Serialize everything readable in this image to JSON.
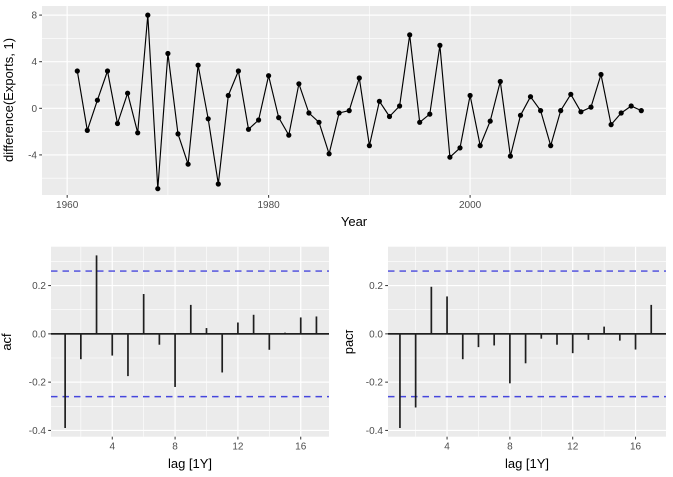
{
  "figure": {
    "background": "#FFFFFF",
    "panel_background": "#EBEBEB",
    "grid_color": "#FFFFFF",
    "axis_text_color": "#4D4D4D",
    "axis_title_color": "#000000",
    "tick_mark_color": "#333333",
    "series_color": "#000000",
    "bar_color": "#1F1F1F",
    "significance_line_color": "#4646DD"
  },
  "chart_data": [
    {
      "id": "difference-exports-timeseries",
      "type": "line",
      "title": "",
      "xlabel": "Year",
      "ylabel": "difference(Exports, 1)",
      "x": [
        1961,
        1962,
        1963,
        1964,
        1965,
        1966,
        1967,
        1968,
        1969,
        1970,
        1971,
        1972,
        1973,
        1974,
        1975,
        1976,
        1977,
        1978,
        1979,
        1980,
        1981,
        1982,
        1983,
        1984,
        1985,
        1986,
        1987,
        1988,
        1989,
        1990,
        1991,
        1992,
        1993,
        1994,
        1995,
        1996,
        1997,
        1998,
        1999,
        2000,
        2001,
        2002,
        2003,
        2004,
        2005,
        2006,
        2007,
        2008,
        2009,
        2010,
        2011,
        2012,
        2013,
        2014,
        2015,
        2016,
        2017
      ],
      "y": [
        3.2,
        -1.9,
        0.7,
        3.2,
        -1.3,
        1.3,
        -2.1,
        8.0,
        -6.9,
        4.7,
        -2.2,
        -4.8,
        3.7,
        -0.9,
        -6.5,
        1.1,
        3.2,
        -1.8,
        -1.0,
        2.8,
        -0.8,
        -2.3,
        2.1,
        -0.4,
        -1.2,
        -3.9,
        -0.4,
        -0.2,
        2.6,
        -3.2,
        0.6,
        -0.7,
        0.2,
        6.3,
        -1.2,
        -0.5,
        5.4,
        -4.2,
        -3.4,
        1.1,
        -3.2,
        -1.1,
        2.3,
        -4.1,
        -0.6,
        1.0,
        -0.2,
        -3.2,
        -0.2,
        1.2,
        -0.3,
        0.1,
        2.9,
        -1.4,
        -0.4,
        0.2,
        -0.2
      ],
      "x_ticks": [
        1960,
        1980,
        2000
      ],
      "x_tick_labels": [
        "1960",
        "1980",
        "2000"
      ],
      "x_minor_ticks": [
        1970,
        1990,
        2010
      ],
      "y_ticks": [
        -4,
        0,
        4,
        8
      ],
      "y_tick_labels": [
        "-4",
        "0",
        "4",
        "8"
      ],
      "y_minor_ticks": [
        -6,
        -2,
        2,
        6
      ],
      "xlim": [
        1957.5,
        2019.45
      ],
      "ylim": [
        -7.44,
        8.78
      ],
      "grid": true,
      "legend": "none",
      "marker": "point"
    },
    {
      "id": "acf",
      "type": "bar",
      "title": "",
      "xlabel": "lag [1Y]",
      "ylabel": "acf",
      "lags": [
        1,
        2,
        3,
        4,
        5,
        6,
        7,
        8,
        9,
        10,
        11,
        12,
        13,
        14,
        15,
        16,
        17
      ],
      "values": [
        -0.39,
        -0.105,
        0.325,
        -0.09,
        -0.175,
        0.165,
        -0.045,
        -0.22,
        0.12,
        0.024,
        -0.16,
        0.047,
        0.079,
        -0.066,
        0.005,
        0.068,
        0.072
      ],
      "significance_bound": 0.26,
      "x_ticks": [
        4,
        8,
        12,
        16
      ],
      "x_tick_labels": [
        "4",
        "8",
        "12",
        "16"
      ],
      "x_minor_ticks": [
        2,
        6,
        10,
        14
      ],
      "y_ticks": [
        -0.4,
        -0.2,
        0.0,
        0.2
      ],
      "y_tick_labels": [
        "-0.4",
        "-0.2",
        "0.0",
        "0.2"
      ],
      "y_minor_ticks": [
        -0.3,
        -0.1,
        0.1,
        0.3
      ],
      "xlim": [
        0.1,
        17.8
      ],
      "ylim": [
        -0.426,
        0.361
      ],
      "grid": true,
      "legend": "none"
    },
    {
      "id": "pacf",
      "type": "bar",
      "title": "",
      "xlabel": "lag [1Y]",
      "ylabel": "pacf",
      "lags": [
        1,
        2,
        3,
        4,
        5,
        6,
        7,
        8,
        9,
        10,
        11,
        12,
        13,
        14,
        15,
        16,
        17
      ],
      "values": [
        -0.39,
        -0.305,
        0.195,
        0.155,
        -0.105,
        -0.055,
        -0.048,
        -0.205,
        -0.122,
        -0.02,
        -0.045,
        -0.08,
        -0.025,
        0.03,
        -0.028,
        -0.065,
        0.12
      ],
      "significance_bound": 0.26,
      "x_ticks": [
        4,
        8,
        12,
        16
      ],
      "x_tick_labels": [
        "4",
        "8",
        "12",
        "16"
      ],
      "x_minor_ticks": [
        2,
        6,
        10,
        14
      ],
      "y_ticks": [
        -0.4,
        -0.2,
        0.0,
        0.2
      ],
      "y_tick_labels": [
        "-0.4",
        "-0.2",
        "0.0",
        "0.2"
      ],
      "y_minor_ticks": [
        -0.3,
        -0.1,
        0.1,
        0.3
      ],
      "xlim": [
        0.24,
        17.94
      ],
      "ylim": [
        -0.426,
        0.361
      ],
      "grid": true,
      "legend": "none"
    }
  ]
}
